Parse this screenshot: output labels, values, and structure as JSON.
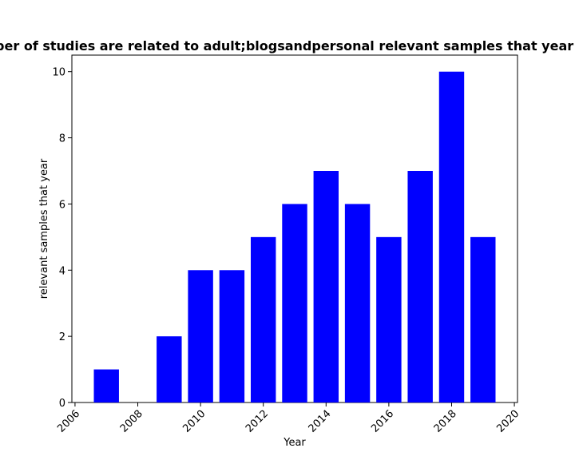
{
  "chart_data": {
    "type": "bar",
    "title": "The number of studies are related to adult;blogsandpersonal relevant samples that year in privacy",
    "xlabel": "Year",
    "ylabel": "relevant samples that year",
    "x": [
      2007,
      2008,
      2009,
      2010,
      2011,
      2012,
      2013,
      2014,
      2015,
      2016,
      2017,
      2018,
      2019
    ],
    "values": [
      1,
      0,
      2,
      4,
      4,
      5,
      6,
      7,
      6,
      5,
      7,
      10,
      5
    ],
    "xlim": [
      2005.9,
      2020.1
    ],
    "ylim": [
      0,
      10.5
    ],
    "xticks": [
      "2006",
      "2008",
      "2010",
      "2012",
      "2014",
      "2016",
      "2018",
      "2020"
    ],
    "yticks": [
      "0",
      "2",
      "4",
      "6",
      "8",
      "10"
    ],
    "bar_color": "#0000ff",
    "grid": false,
    "legend": "none"
  }
}
